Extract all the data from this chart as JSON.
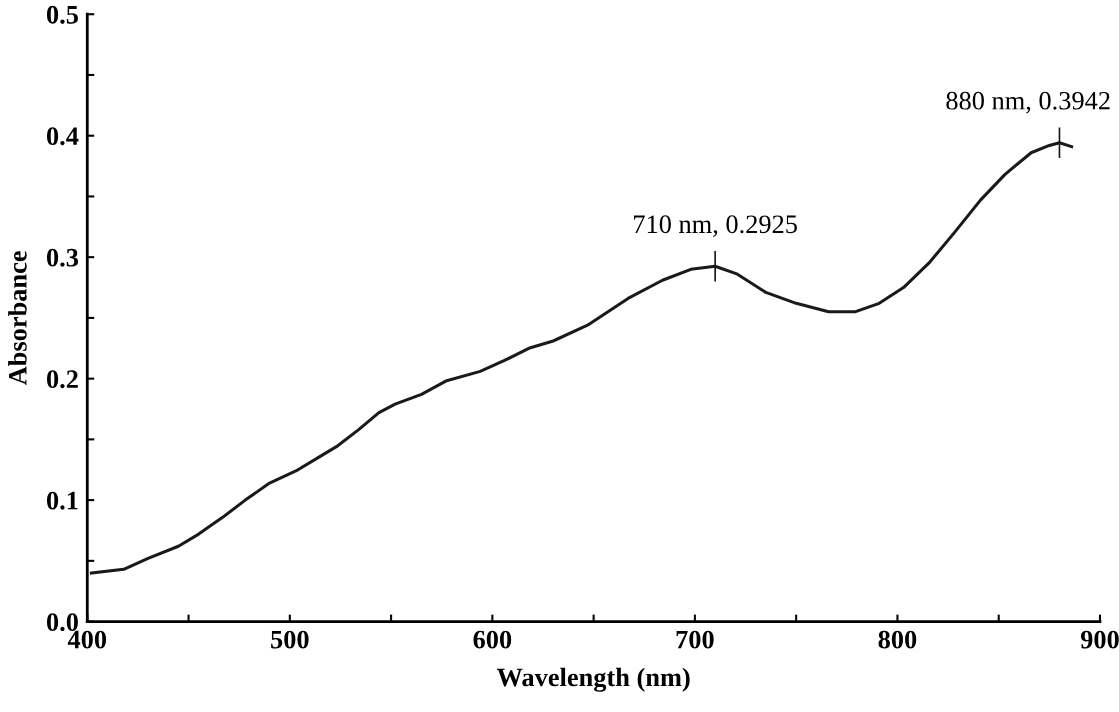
{
  "chart_data": {
    "type": "line",
    "xlabel": "Wavelength (nm)",
    "ylabel": "Absorbance",
    "x": [
      402,
      418,
      430,
      445,
      455,
      467,
      478,
      490,
      503,
      515,
      523,
      534,
      544,
      552,
      565,
      577,
      594,
      606,
      618,
      630,
      647,
      667,
      684,
      698,
      710,
      721,
      735,
      750,
      766,
      779,
      791,
      803,
      816,
      828,
      841,
      853,
      866,
      875,
      880,
      886
    ],
    "series": [
      {
        "color": "#1a1a1a",
        "values": [
          0.04,
          0.043,
          0.052,
          0.062,
          0.072,
          0.086,
          0.1,
          0.114,
          0.124,
          0.136,
          0.144,
          0.158,
          0.172,
          0.179,
          0.187,
          0.198,
          0.206,
          0.215,
          0.225,
          0.231,
          0.244,
          0.266,
          0.281,
          0.29,
          0.2925,
          0.286,
          0.271,
          0.262,
          0.255,
          0.255,
          0.262,
          0.275,
          0.296,
          0.32,
          0.347,
          0.368,
          0.386,
          0.392,
          0.3942,
          0.391
        ]
      }
    ],
    "xlim": [
      400,
      900
    ],
    "xticks": [
      400,
      {
        "value": 450,
        "label": null
      },
      500,
      {
        "value": 550,
        "label": null
      },
      600,
      {
        "value": 650,
        "label": null
      },
      700,
      {
        "value": 750,
        "label": null
      },
      800,
      {
        "value": 850,
        "label": null
      },
      900
    ],
    "ylim": [
      0,
      0.5
    ],
    "yticks": [
      {
        "value": 0,
        "label": "0.0"
      },
      {
        "value": 0.05,
        "label": null
      },
      0.1,
      {
        "value": 0.15,
        "label": null
      },
      0.2,
      {
        "value": 0.25,
        "label": null
      },
      0.3,
      {
        "value": 0.35,
        "label": null
      },
      0.4,
      {
        "value": 0.45,
        "label": null
      },
      0.5
    ],
    "annotations": [
      {
        "text": "710 nm, 0.2925",
        "x": 710,
        "y": 0.2925
      },
      {
        "text": "880 nm, 0.3942",
        "x": 880,
        "y": 0.3942
      }
    ],
    "grid": false,
    "legend": false,
    "marker": "none",
    "line_style": "solid"
  }
}
